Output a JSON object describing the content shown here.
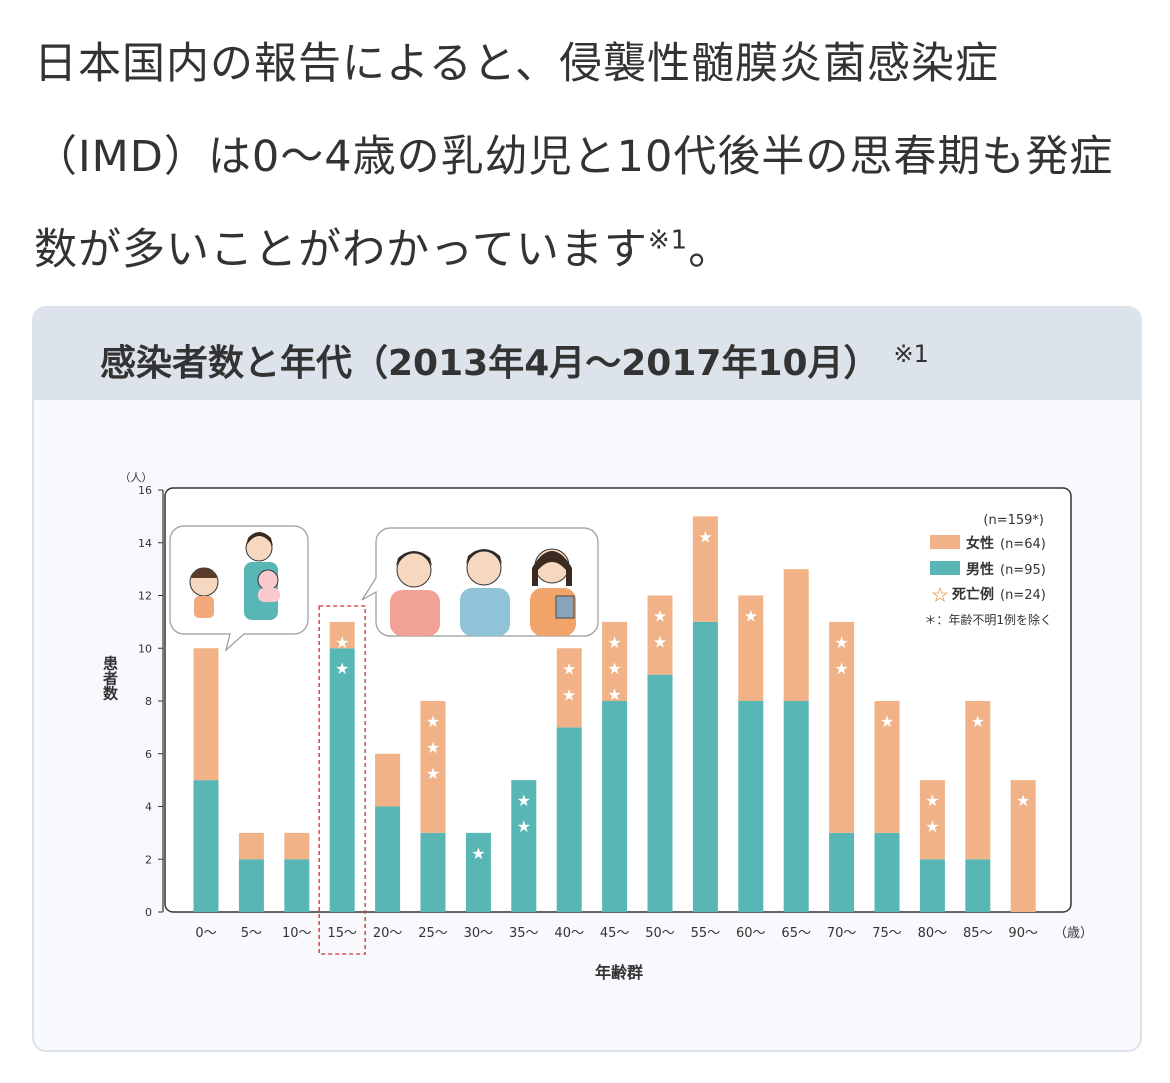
{
  "intro": {
    "line1": "日本国内の報告によると、侵襲性髄膜炎菌感染症",
    "line2": "（IMD）は0〜4歳の乳幼児と10代後半の思春期も発症",
    "line3": "数が多いことがわかっています",
    "note": "※1",
    "end": "。"
  },
  "card": {
    "title": "感染者数と年代（2013年4月〜2017年10月）",
    "note": "※1"
  },
  "colors": {
    "female": "#f0b286",
    "male": "#58b6b4",
    "highlight": "#d9534f",
    "frame": "#333333"
  },
  "chart_data": {
    "type": "bar",
    "stacked": true,
    "categories": [
      "0〜",
      "5〜",
      "10〜",
      "15〜",
      "20〜",
      "25〜",
      "30〜",
      "35〜",
      "40〜",
      "45〜",
      "50〜",
      "55〜",
      "60〜",
      "65〜",
      "70〜",
      "75〜",
      "80〜",
      "85〜",
      "90〜"
    ],
    "x_unit": "（歳）",
    "xlabel": "年齢群",
    "ylabel": "患者数",
    "y_unit": "（人）",
    "ylim": [
      0,
      16
    ],
    "yticks": [
      0,
      2,
      4,
      6,
      8,
      10,
      12,
      14,
      16
    ],
    "series": [
      {
        "name": "男性",
        "count_label": "(n=95)",
        "values": [
          5,
          2,
          2,
          10,
          4,
          3,
          3,
          5,
          7,
          8,
          9,
          11,
          8,
          8,
          3,
          3,
          2,
          2,
          0
        ]
      },
      {
        "name": "女性",
        "count_label": "(n=64)",
        "values": [
          5,
          1,
          1,
          1,
          2,
          5,
          0,
          0,
          3,
          3,
          3,
          4,
          4,
          5,
          8,
          5,
          3,
          6,
          5
        ]
      }
    ],
    "deaths": [
      0,
      0,
      0,
      2,
      0,
      3,
      1,
      2,
      2,
      3,
      2,
      1,
      1,
      0,
      2,
      1,
      2,
      1,
      1
    ],
    "death_label": "死亡例",
    "death_count_label": "(n=24)",
    "total_label": "(n=159*)",
    "footnote": "＊：年齢不明1例を除く",
    "highlight_category": "15〜",
    "grid": false,
    "legend_position": "top-right"
  }
}
